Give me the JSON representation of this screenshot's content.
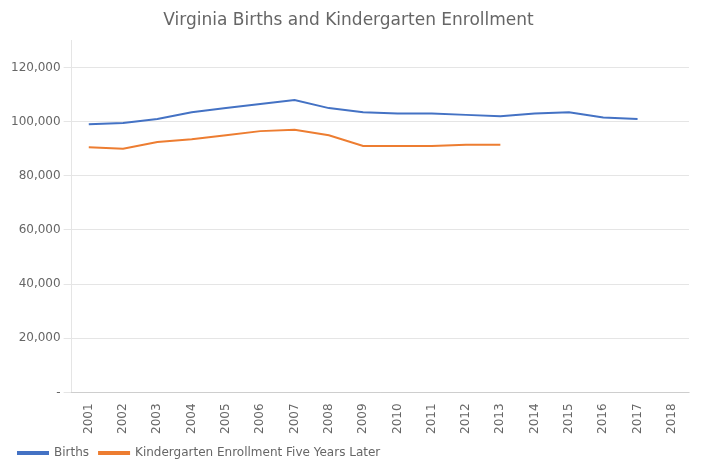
{
  "chart_data": {
    "type": "line",
    "title": "Virginia Births and Kindergarten Enrollment",
    "x": [
      2001,
      2002,
      2003,
      2004,
      2005,
      2006,
      2007,
      2008,
      2009,
      2010,
      2011,
      2012,
      2013,
      2014,
      2015,
      2016,
      2017
    ],
    "series": [
      {
        "name": "Births",
        "color": "#4472C4",
        "values": [
          99000,
          99500,
          101000,
          103500,
          105000,
          106500,
          108000,
          105000,
          103500,
          103000,
          103000,
          102500,
          102000,
          103000,
          103500,
          101500,
          101000
        ]
      },
      {
        "name": "Kindergarten Enrollment Five Years Later",
        "color": "#ED7D31",
        "values": [
          90500,
          90000,
          92500,
          93500,
          95000,
          96500,
          97000,
          95000,
          91000,
          91000,
          91000,
          91500,
          91500,
          null,
          null,
          null,
          null
        ]
      }
    ],
    "xlim": [
      2000.5,
      2018.5
    ],
    "xticks": [
      2001,
      2002,
      2003,
      2004,
      2005,
      2006,
      2007,
      2008,
      2009,
      2010,
      2011,
      2012,
      2013,
      2014,
      2015,
      2016,
      2017,
      2018
    ],
    "ylim": [
      0,
      130000
    ],
    "yticks": [
      {
        "value": 0,
        "label": "-"
      },
      {
        "value": 20000,
        "label": "20,000"
      },
      {
        "value": 40000,
        "label": "40,000"
      },
      {
        "value": 60000,
        "label": "60,000"
      },
      {
        "value": 80000,
        "label": "80,000"
      },
      {
        "value": 100000,
        "label": "100,000"
      },
      {
        "value": 120000,
        "label": "120,000"
      }
    ],
    "grid": "y",
    "legend": "bottom"
  }
}
